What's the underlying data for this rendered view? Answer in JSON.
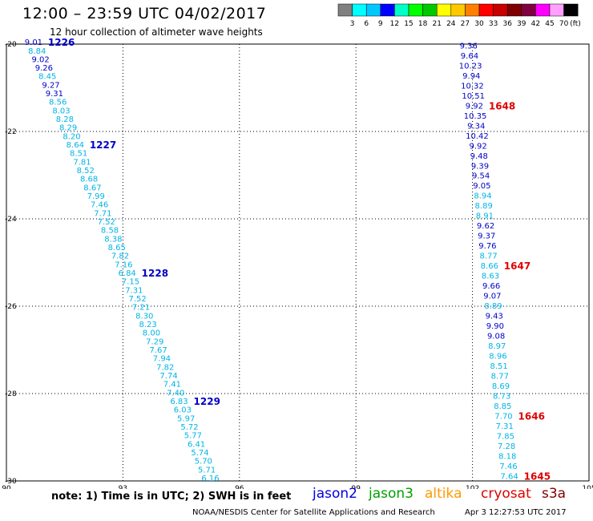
{
  "header": {
    "title": "12:00 – 23:59 UTC 04/02/2017",
    "subtitle": "12 hour collection of altimeter wave heights"
  },
  "colorbar": {
    "unit": "(ft)",
    "colors": [
      "#808080",
      "#00ffff",
      "#00c8ff",
      "#0000ff",
      "#00ffc8",
      "#00ff00",
      "#00c800",
      "#ffff00",
      "#ffc800",
      "#ff8000",
      "#ff0000",
      "#c80000",
      "#800000",
      "#800040",
      "#ff00ff",
      "#ffa0ff",
      "#000000"
    ],
    "labels": [
      "3",
      "6",
      "9",
      "12",
      "15",
      "18",
      "21",
      "24",
      "27",
      "30",
      "33",
      "36",
      "39",
      "42",
      "45",
      "70"
    ]
  },
  "chart_data": {
    "type": "scatter",
    "x_axis": {
      "range": [
        90,
        105
      ],
      "ticks": [
        "90",
        "93",
        "96",
        "99",
        "102",
        "105"
      ],
      "tick_values": [
        90,
        93,
        96,
        99,
        102,
        105
      ]
    },
    "y_axis": {
      "range": [
        -30,
        -20
      ],
      "ticks": [
        "-20",
        "-22",
        "-24",
        "-26",
        "-28",
        "-30"
      ],
      "tick_values": [
        -20,
        -22,
        -24,
        -26,
        -28,
        -30
      ]
    },
    "tracks": [
      {
        "satellite": "jason2",
        "start": [
          90.7,
          -20.02
        ],
        "end": [
          95.25,
          -30.0
        ],
        "points": [
          {
            "v": "9.01",
            "c": "#0000c8"
          },
          {
            "v": "8.84",
            "c": "#00b4e6"
          },
          {
            "v": "9.02",
            "c": "#0000c8"
          },
          {
            "v": "9.26",
            "c": "#0000c8"
          },
          {
            "v": "8.45",
            "c": "#00b4e6"
          },
          {
            "v": "9.27",
            "c": "#0000c8"
          },
          {
            "v": "9.31",
            "c": "#0000c8"
          },
          {
            "v": "8.56",
            "c": "#00b4e6"
          },
          {
            "v": "8.03",
            "c": "#00b4e6"
          },
          {
            "v": "8.28",
            "c": "#00b4e6"
          },
          {
            "v": "8.29",
            "c": "#00b4e6"
          },
          {
            "v": "8.20",
            "c": "#00b4e6"
          },
          {
            "v": "8.64",
            "c": "#00b4e6"
          },
          {
            "v": "8.51",
            "c": "#00b4e6"
          },
          {
            "v": "7.81",
            "c": "#00b4e6"
          },
          {
            "v": "8.52",
            "c": "#00b4e6"
          },
          {
            "v": "8.68",
            "c": "#00b4e6"
          },
          {
            "v": "8.67",
            "c": "#00b4e6"
          },
          {
            "v": "7.99",
            "c": "#00b4e6"
          },
          {
            "v": "7.46",
            "c": "#00b4e6"
          },
          {
            "v": "7.71",
            "c": "#00b4e6"
          },
          {
            "v": "7.52",
            "c": "#00b4e6"
          },
          {
            "v": "8.58",
            "c": "#00b4e6"
          },
          {
            "v": "8.38",
            "c": "#00b4e6"
          },
          {
            "v": "8.65",
            "c": "#00b4e6"
          },
          {
            "v": "7.82",
            "c": "#00b4e6"
          },
          {
            "v": "7.16",
            "c": "#00b4e6"
          },
          {
            "v": "6.84",
            "c": "#00b4e6"
          },
          {
            "v": "7.15",
            "c": "#00b4e6"
          },
          {
            "v": "7.31",
            "c": "#00b4e6"
          },
          {
            "v": "7.52",
            "c": "#00b4e6"
          },
          {
            "v": "7.21",
            "c": "#00b4e6"
          },
          {
            "v": "8.30",
            "c": "#00b4e6"
          },
          {
            "v": "8.23",
            "c": "#00b4e6"
          },
          {
            "v": "8.00",
            "c": "#00b4e6"
          },
          {
            "v": "7.29",
            "c": "#00b4e6"
          },
          {
            "v": "7.67",
            "c": "#00b4e6"
          },
          {
            "v": "7.94",
            "c": "#00b4e6"
          },
          {
            "v": "7.82",
            "c": "#00b4e6"
          },
          {
            "v": "7.74",
            "c": "#00b4e6"
          },
          {
            "v": "7.41",
            "c": "#00b4e6"
          },
          {
            "v": "7.40",
            "c": "#00b4e6"
          },
          {
            "v": "6.83",
            "c": "#00b4e6"
          },
          {
            "v": "6.03",
            "c": "#00b4e6"
          },
          {
            "v": "5.97",
            "c": "#00b4e6"
          },
          {
            "v": "5.72",
            "c": "#00b4e6"
          },
          {
            "v": "5.77",
            "c": "#00b4e6"
          },
          {
            "v": "6.41",
            "c": "#00b4e6"
          },
          {
            "v": "5.74",
            "c": "#00b4e6"
          },
          {
            "v": "5.70",
            "c": "#00b4e6"
          },
          {
            "v": "5.71",
            "c": "#00b4e6"
          },
          {
            "v": "6.16",
            "c": "#00b4e6"
          }
        ],
        "times": [
          {
            "label": "1226",
            "index": 0,
            "color": "#0000c8"
          },
          {
            "label": "1227",
            "index": 12,
            "color": "#0000c8"
          },
          {
            "label": "1228",
            "index": 27,
            "color": "#0000c8"
          },
          {
            "label": "1229",
            "index": 42,
            "color": "#0000c8"
          }
        ]
      },
      {
        "satellite": "cryosat",
        "start": [
          101.9,
          -20.1
        ],
        "end": [
          102.95,
          -29.95
        ],
        "points": [
          {
            "v": "9.36",
            "c": "#0000c8"
          },
          {
            "v": "9.64",
            "c": "#0000c8"
          },
          {
            "v": "10.23",
            "c": "#0000c8"
          },
          {
            "v": "9.94",
            "c": "#0000c8"
          },
          {
            "v": "10.32",
            "c": "#0000c8"
          },
          {
            "v": "10.51",
            "c": "#0000c8"
          },
          {
            "v": "9.92",
            "c": "#0000c8"
          },
          {
            "v": "10.35",
            "c": "#0000c8"
          },
          {
            "v": "9.34",
            "c": "#0000c8"
          },
          {
            "v": "10.42",
            "c": "#0000c8"
          },
          {
            "v": "9.92",
            "c": "#0000c8"
          },
          {
            "v": "9.48",
            "c": "#0000c8"
          },
          {
            "v": "9.39",
            "c": "#0000c8"
          },
          {
            "v": "9.54",
            "c": "#0000c8"
          },
          {
            "v": "9.05",
            "c": "#0000c8"
          },
          {
            "v": "8.94",
            "c": "#00b4e6"
          },
          {
            "v": "8.89",
            "c": "#00b4e6"
          },
          {
            "v": "8.91",
            "c": "#00b4e6"
          },
          {
            "v": "9.62",
            "c": "#0000c8"
          },
          {
            "v": "9.37",
            "c": "#0000c8"
          },
          {
            "v": "9.76",
            "c": "#0000c8"
          },
          {
            "v": "8.77",
            "c": "#00b4e6"
          },
          {
            "v": "8.66",
            "c": "#00b4e6"
          },
          {
            "v": "8.63",
            "c": "#00b4e6"
          },
          {
            "v": "9.66",
            "c": "#0000c8"
          },
          {
            "v": "9.07",
            "c": "#0000c8"
          },
          {
            "v": "8.89",
            "c": "#00b4e6"
          },
          {
            "v": "9.43",
            "c": "#0000c8"
          },
          {
            "v": "9.90",
            "c": "#0000c8"
          },
          {
            "v": "9.08",
            "c": "#0000c8"
          },
          {
            "v": "8.97",
            "c": "#00b4e6"
          },
          {
            "v": "8.96",
            "c": "#00b4e6"
          },
          {
            "v": "8.51",
            "c": "#00b4e6"
          },
          {
            "v": "8.77",
            "c": "#00b4e6"
          },
          {
            "v": "8.69",
            "c": "#00b4e6"
          },
          {
            "v": "8.73",
            "c": "#00b4e6"
          },
          {
            "v": "8.85",
            "c": "#00b4e6"
          },
          {
            "v": "7.70",
            "c": "#00b4e6"
          },
          {
            "v": "7.31",
            "c": "#00b4e6"
          },
          {
            "v": "7.85",
            "c": "#00b4e6"
          },
          {
            "v": "7.28",
            "c": "#00b4e6"
          },
          {
            "v": "8.18",
            "c": "#00b4e6"
          },
          {
            "v": "7.46",
            "c": "#00b4e6"
          },
          {
            "v": "7.64",
            "c": "#00b4e6"
          }
        ],
        "times": [
          {
            "label": "1648",
            "index": 6,
            "color": "#e00000"
          },
          {
            "label": "1647",
            "index": 22,
            "color": "#e00000"
          },
          {
            "label": "1646",
            "index": 37,
            "color": "#e00000"
          },
          {
            "label": "1645",
            "index": 43,
            "color": "#e00000"
          }
        ]
      }
    ]
  },
  "footer": {
    "note": "note:  1) Time is in UTC;  2) SWH is in feet",
    "legend": [
      {
        "name": "jason2",
        "color": "#0000e0"
      },
      {
        "name": "jason3",
        "color": "#00a000"
      },
      {
        "name": "altika",
        "color": "#ff9900"
      },
      {
        "name": "cryosat",
        "color": "#e00000"
      },
      {
        "name": "s3a",
        "color": "#800000"
      }
    ],
    "credit": "NOAA/NESDIS Center for Satellite Applications and Research",
    "timestamp": "Apr  3 12:27:53 UTC 2017"
  }
}
